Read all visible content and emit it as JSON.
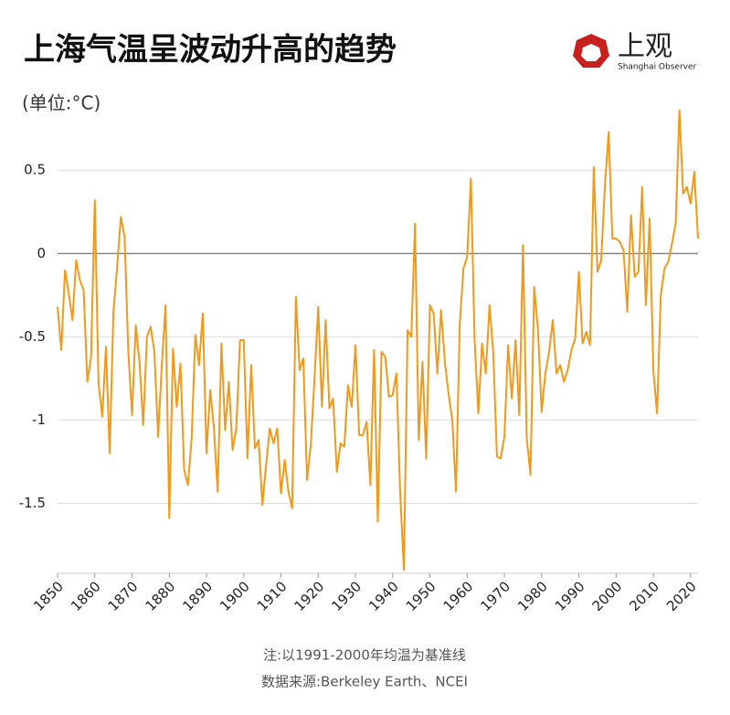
{
  "brand": {
    "name": "上观",
    "subtitle": "Shanghai Observer"
  },
  "chart_data": {
    "type": "line",
    "title": "上海气温呈波动升高的趋势",
    "subtitle": "(单位:°C)",
    "notes": [
      "注:以1991-2000年均温为基准线",
      "数据来源:Berkeley Earth、NCEI"
    ],
    "x": [
      1850,
      1851,
      1852,
      1853,
      1854,
      1855,
      1856,
      1857,
      1858,
      1859,
      1860,
      1861,
      1862,
      1863,
      1864,
      1865,
      1866,
      1867,
      1868,
      1869,
      1870,
      1871,
      1872,
      1873,
      1874,
      1875,
      1876,
      1877,
      1878,
      1879,
      1880,
      1881,
      1882,
      1883,
      1884,
      1885,
      1886,
      1887,
      1888,
      1889,
      1890,
      1891,
      1892,
      1893,
      1894,
      1895,
      1896,
      1897,
      1898,
      1899,
      1900,
      1901,
      1902,
      1903,
      1904,
      1905,
      1906,
      1907,
      1908,
      1909,
      1910,
      1911,
      1912,
      1913,
      1914,
      1915,
      1916,
      1917,
      1918,
      1919,
      1920,
      1921,
      1922,
      1923,
      1924,
      1925,
      1926,
      1927,
      1928,
      1929,
      1930,
      1931,
      1932,
      1933,
      1934,
      1935,
      1936,
      1937,
      1938,
      1939,
      1940,
      1941,
      1942,
      1943,
      1944,
      1945,
      1946,
      1947,
      1948,
      1949,
      1950,
      1951,
      1952,
      1953,
      1954,
      1955,
      1956,
      1957,
      1958,
      1959,
      1960,
      1961,
      1962,
      1963,
      1964,
      1965,
      1966,
      1967,
      1968,
      1969,
      1970,
      1971,
      1972,
      1973,
      1974,
      1975,
      1976,
      1977,
      1978,
      1979,
      1980,
      1981,
      1982,
      1983,
      1984,
      1985,
      1986,
      1987,
      1988,
      1989,
      1990,
      1991,
      1992,
      1993,
      1994,
      1995,
      1996,
      1997,
      1998,
      1999,
      2000,
      2001,
      2002,
      2003,
      2004,
      2005,
      2006,
      2007,
      2008,
      2009,
      2010,
      2011,
      2012,
      2013,
      2014,
      2015,
      2016,
      2017,
      2018,
      2019,
      2020,
      2021,
      2022
    ],
    "series": [
      {
        "name": "上海气温",
        "color": "#f09a1c",
        "values": [
          -0.32,
          -0.58,
          -0.1,
          -0.24,
          -0.4,
          -0.04,
          -0.16,
          -0.22,
          -0.77,
          -0.62,
          0.32,
          -0.78,
          -0.98,
          -0.56,
          -1.2,
          -0.35,
          -0.08,
          0.22,
          0.1,
          -0.59,
          -0.97,
          -0.43,
          -0.65,
          -1.03,
          -0.5,
          -0.44,
          -0.59,
          -1.1,
          -0.67,
          -0.31,
          -1.59,
          -0.57,
          -0.92,
          -0.66,
          -1.3,
          -1.39,
          -1.11,
          -0.49,
          -0.67,
          -0.36,
          -1.2,
          -0.82,
          -1.05,
          -1.43,
          -0.54,
          -1.06,
          -0.77,
          -1.18,
          -1.05,
          -0.52,
          -0.52,
          -1.23,
          -0.67,
          -1.17,
          -1.12,
          -1.51,
          -1.27,
          -1.05,
          -1.14,
          -1.05,
          -1.44,
          -1.24,
          -1.43,
          -1.53,
          -0.26,
          -0.7,
          -0.63,
          -1.36,
          -1.15,
          -0.75,
          -0.32,
          -0.92,
          -0.4,
          -0.93,
          -0.87,
          -1.31,
          -1.14,
          -1.16,
          -0.79,
          -0.92,
          -0.55,
          -1.09,
          -1.09,
          -1.01,
          -1.39,
          -0.58,
          -1.61,
          -0.59,
          -0.62,
          -0.86,
          -0.85,
          -0.72,
          -1.43,
          -1.9,
          -0.46,
          -0.5,
          0.18,
          -1.12,
          -0.65,
          -1.23,
          -0.31,
          -0.36,
          -0.72,
          -0.34,
          -0.65,
          -0.84,
          -1.0,
          -1.43,
          -0.43,
          -0.09,
          -0.02,
          0.45,
          -0.52,
          -0.96,
          -0.54,
          -0.72,
          -0.31,
          -0.59,
          -1.22,
          -1.23,
          -1.1,
          -0.55,
          -0.87,
          -0.52,
          -0.97,
          0.05,
          -1.11,
          -1.33,
          -0.2,
          -0.45,
          -0.95,
          -0.72,
          -0.59,
          -0.4,
          -0.72,
          -0.67,
          -0.77,
          -0.7,
          -0.58,
          -0.51,
          -0.11,
          -0.54,
          -0.47,
          -0.55,
          0.52,
          -0.11,
          -0.04,
          0.41,
          0.73,
          0.09,
          0.09,
          0.07,
          0.02,
          -0.35,
          0.23,
          -0.14,
          -0.11,
          0.4,
          -0.31,
          0.21,
          -0.7,
          -0.96,
          -0.25,
          -0.09,
          -0.05,
          0.06,
          0.18,
          0.86,
          0.36,
          0.4,
          0.3,
          0.49,
          0.09
        ]
      }
    ],
    "xlim": [
      1850,
      2022
    ],
    "xticks": [
      1850,
      1860,
      1870,
      1880,
      1890,
      1900,
      1910,
      1920,
      1930,
      1940,
      1950,
      1960,
      1970,
      1980,
      1990,
      2000,
      2010,
      2020
    ],
    "ylim": [
      -1.92,
      0.88
    ],
    "yticks": [
      0.5,
      0,
      -0.5,
      -1,
      -1.5
    ],
    "grid": true
  }
}
